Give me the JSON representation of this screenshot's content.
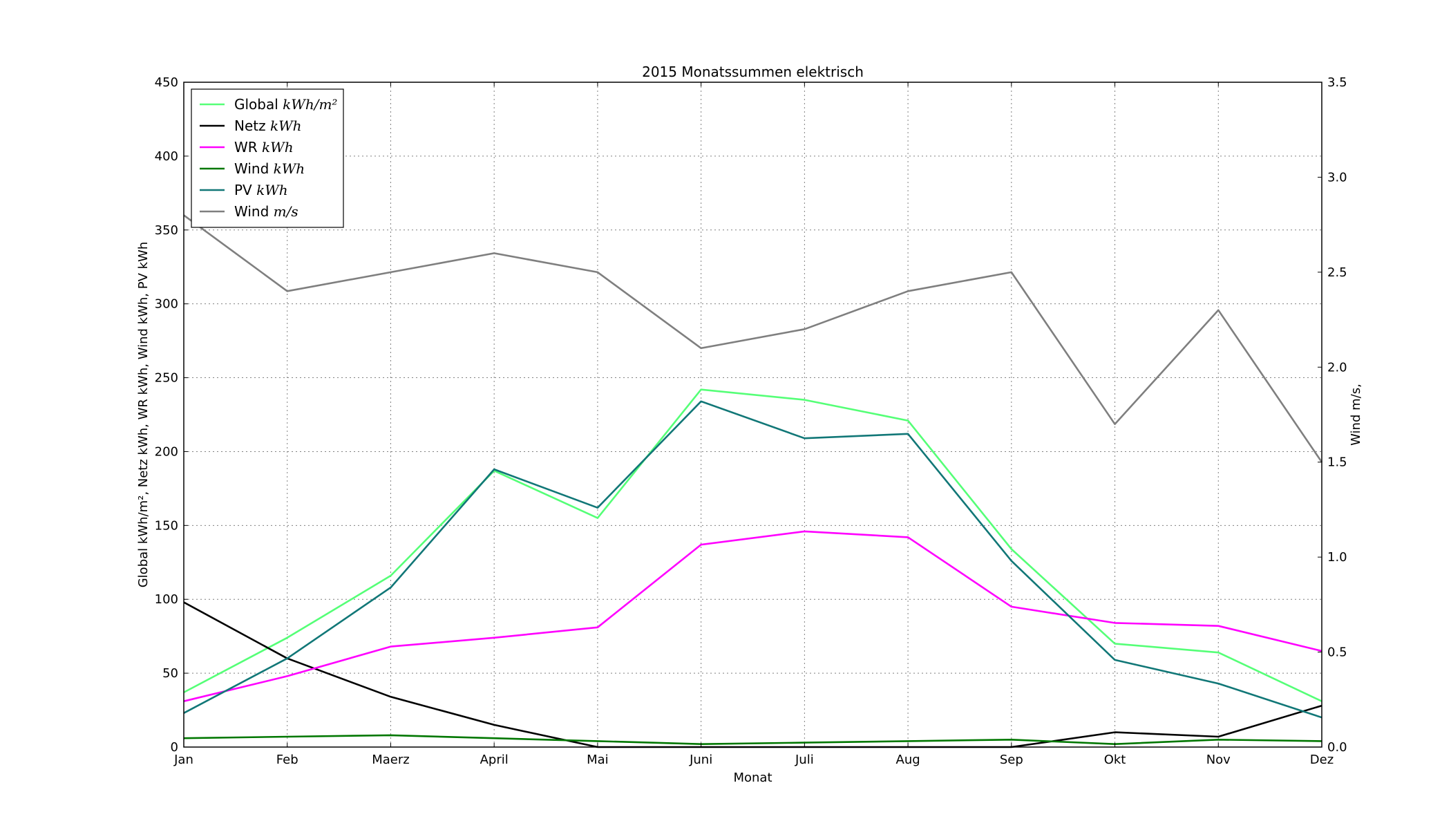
{
  "chart_data": {
    "type": "line",
    "title": "2015 Monatssummen elektrisch",
    "xlabel": "Monat",
    "ylabel": "Global kWh/m², Netz kWh, WR kWh, Wind kWh, PV kWh",
    "y2label": "Wind m/s,",
    "categories": [
      "Jan",
      "Feb",
      "Maerz",
      "April",
      "Mai",
      "Juni",
      "Juli",
      "Aug",
      "Sep",
      "Okt",
      "Nov",
      "Dez"
    ],
    "ylim": [
      0,
      450
    ],
    "yticks": [
      0,
      50,
      100,
      150,
      200,
      250,
      300,
      350,
      400,
      450
    ],
    "y2lim": [
      0,
      3.5
    ],
    "y2ticks": [
      "0.0",
      "0.5",
      "1.0",
      "1.5",
      "2.0",
      "2.5",
      "3.0",
      "3.5"
    ],
    "grid": true,
    "legend_position": "top-left",
    "series": [
      {
        "name": "Global",
        "unit": "kWh/m²",
        "color": "#55ff77",
        "axis": "left",
        "values": [
          37,
          74,
          116,
          187,
          155,
          242,
          235,
          221,
          134,
          70,
          64,
          31
        ]
      },
      {
        "name": "Netz",
        "unit": "kWh",
        "color": "#000000",
        "axis": "left",
        "values": [
          98,
          60,
          34,
          15,
          0,
          0,
          0,
          0,
          0,
          10,
          7,
          28
        ]
      },
      {
        "name": "WR",
        "unit": "kWh",
        "color": "#ff00ff",
        "axis": "left",
        "values": [
          31,
          48,
          68,
          74,
          81,
          137,
          146,
          142,
          95,
          84,
          82,
          65
        ]
      },
      {
        "name": "Wind",
        "unit": "kWh",
        "color": "#007700",
        "axis": "left",
        "values": [
          6,
          7,
          8,
          6,
          4,
          2,
          3,
          4,
          5,
          2,
          5,
          4
        ]
      },
      {
        "name": "PV",
        "unit": "kWh",
        "color": "#117777",
        "axis": "left",
        "values": [
          23,
          60,
          108,
          188,
          162,
          234,
          209,
          212,
          126,
          59,
          43,
          20
        ]
      },
      {
        "name": "Wind",
        "unit": "m/s",
        "color": "#7f7f7f",
        "axis": "right",
        "values": [
          2.8,
          2.4,
          2.5,
          2.6,
          2.5,
          2.1,
          2.2,
          2.4,
          2.5,
          1.7,
          2.3,
          1.5
        ]
      }
    ]
  }
}
